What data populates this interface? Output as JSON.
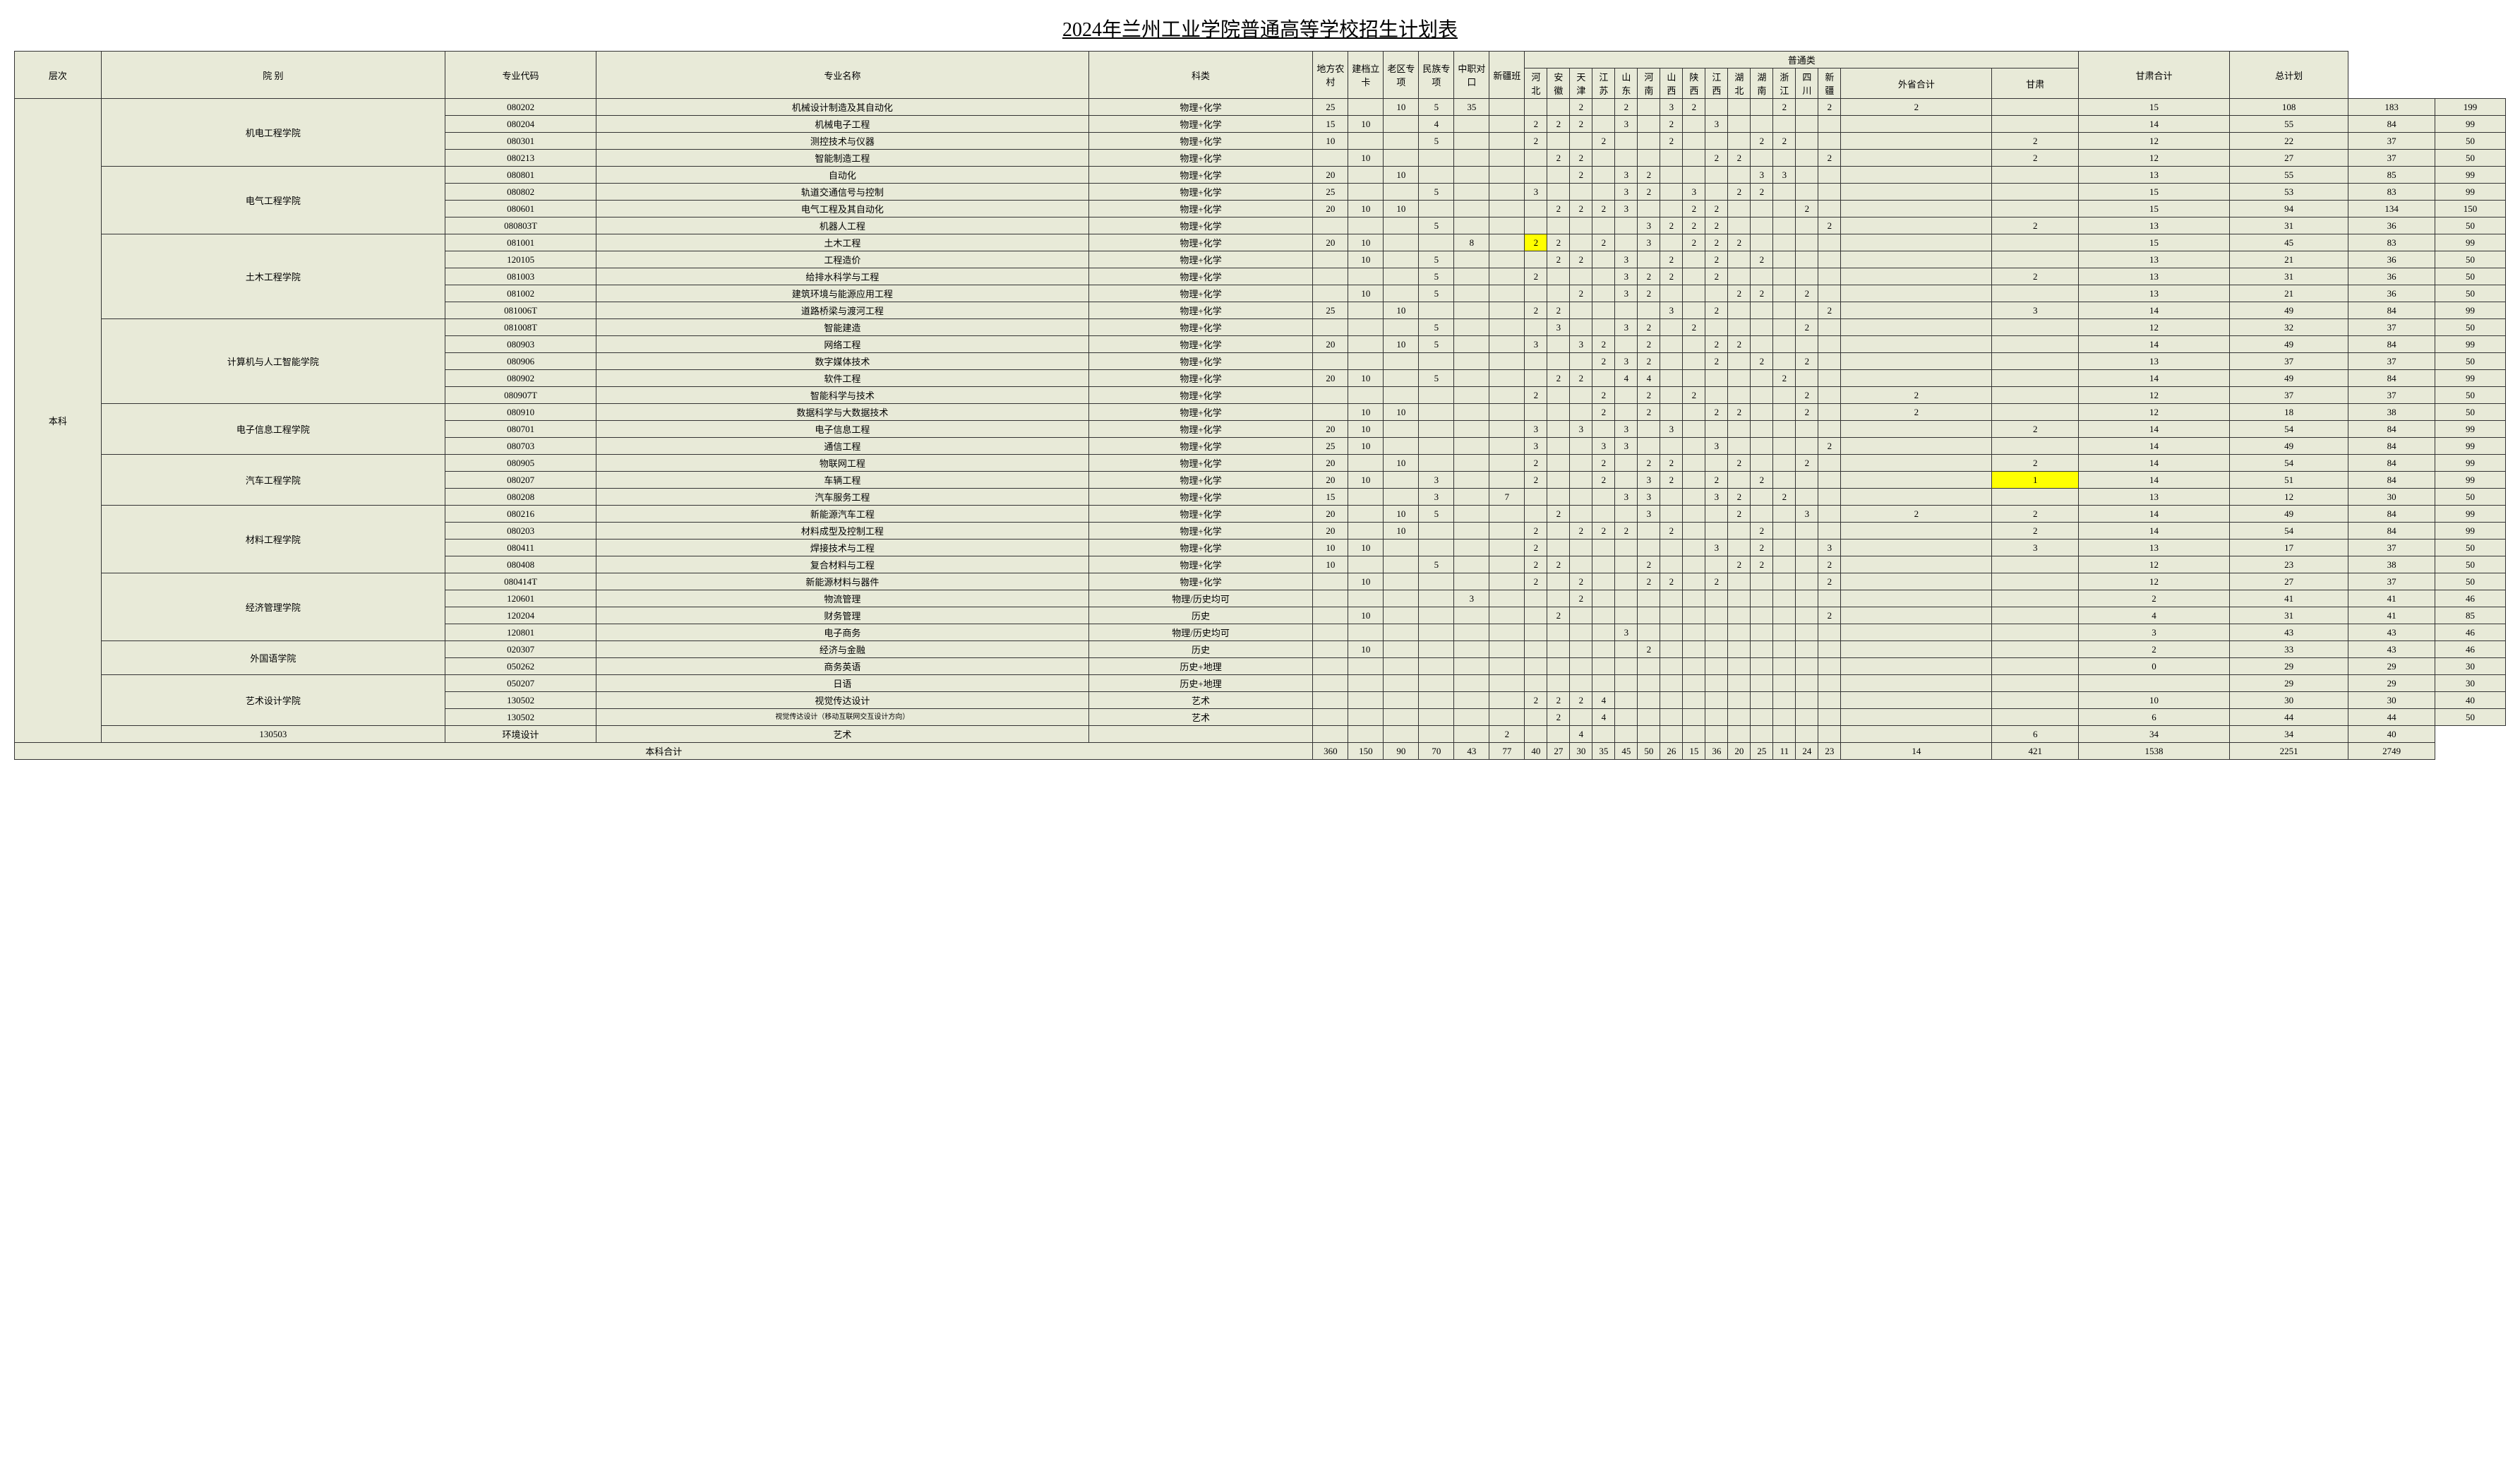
{
  "title": "2024年兰州工业学院普通高等学校招生计划表",
  "headers": {
    "level": "层次",
    "dept": "院 别",
    "code": "专业代码",
    "major": "专业名称",
    "category": "科类",
    "local": "地方农村",
    "jiandang": "建档立卡",
    "laoqu": "老区专项",
    "minzu": "民族专项",
    "zhongzhi": "中职对口",
    "xinjiang_class": "新疆班",
    "general": "普通类",
    "provinces": [
      "河北",
      "安徽",
      "天津",
      "江苏",
      "山东",
      "河南",
      "山西",
      "陕西",
      "江西",
      "湖北",
      "湖南",
      "浙江",
      "四川",
      "新疆"
    ],
    "outside_total": "外省合计",
    "gansu": "甘肃",
    "gansu_total": "甘肃合计",
    "grand_total": "总计划"
  },
  "level_label": "本科",
  "departments": [
    {
      "name": "机电工程学院",
      "span": 4
    },
    {
      "name": "电气工程学院",
      "span": 4
    },
    {
      "name": "土木工程学院",
      "span": 5
    },
    {
      "name": "计算机与人工智能学院",
      "span": 5
    },
    {
      "name": "电子信息工程学院",
      "span": 3
    },
    {
      "name": "汽车工程学院",
      "span": 3
    },
    {
      "name": "材料工程学院",
      "span": 4
    },
    {
      "name": "经济管理学院",
      "span": 4
    },
    {
      "name": "外国语学院",
      "span": 2
    },
    {
      "name": "艺术设计学院",
      "span": 3
    }
  ],
  "rows": [
    {
      "code": "080202",
      "major": "机械设计制造及其自动化",
      "cat": "物理+化学",
      "cells": [
        "25",
        "",
        "10",
        "5",
        "35",
        "",
        "",
        "",
        "2",
        "",
        "2",
        "",
        "3",
        "2",
        "",
        "",
        "",
        "2",
        "",
        "2",
        "2",
        "",
        "15",
        "108",
        "183",
        "199"
      ]
    },
    {
      "code": "080204",
      "major": "机械电子工程",
      "cat": "物理+化学",
      "cells": [
        "15",
        "10",
        "",
        "4",
        "",
        "",
        "2",
        "2",
        "2",
        "",
        "3",
        "",
        "2",
        "",
        "3",
        "",
        "",
        "",
        "",
        "",
        "",
        "",
        "14",
        "55",
        "84",
        "99"
      ]
    },
    {
      "code": "080301",
      "major": "测控技术与仪器",
      "cat": "物理+化学",
      "cells": [
        "10",
        "",
        "",
        "5",
        "",
        "",
        "2",
        "",
        "",
        "2",
        "",
        "",
        "2",
        "",
        "",
        "",
        "2",
        "2",
        "",
        "",
        "",
        "2",
        "12",
        "22",
        "37",
        "50"
      ]
    },
    {
      "code": "080213",
      "major": "智能制造工程",
      "cat": "物理+化学",
      "cells": [
        "",
        "10",
        "",
        "",
        "",
        "",
        "",
        "2",
        "2",
        "",
        "",
        "",
        "",
        "",
        "2",
        "2",
        "",
        "",
        "",
        "2",
        "",
        "2",
        "12",
        "27",
        "37",
        "50"
      ]
    },
    {
      "code": "080801",
      "major": "自动化",
      "cat": "物理+化学",
      "cells": [
        "20",
        "",
        "10",
        "",
        "",
        "",
        "",
        "",
        "2",
        "",
        "3",
        "2",
        "",
        "",
        "",
        "",
        "3",
        "3",
        "",
        "",
        "",
        "",
        "13",
        "55",
        "85",
        "99"
      ]
    },
    {
      "code": "080802",
      "major": "轨道交通信号与控制",
      "cat": "物理+化学",
      "cells": [
        "25",
        "",
        "",
        "5",
        "",
        "",
        "3",
        "",
        "",
        "",
        "3",
        "2",
        "",
        "3",
        "",
        "2",
        "2",
        "",
        "",
        "",
        "",
        "",
        "15",
        "53",
        "83",
        "99"
      ]
    },
    {
      "code": "080601",
      "major": "电气工程及其自动化",
      "cat": "物理+化学",
      "cells": [
        "20",
        "10",
        "10",
        "",
        "",
        "",
        "",
        "2",
        "2",
        "2",
        "3",
        "",
        "",
        "2",
        "2",
        "",
        "",
        "",
        "2",
        "",
        "",
        "",
        "15",
        "94",
        "134",
        "150"
      ]
    },
    {
      "code": "080803T",
      "major": "机器人工程",
      "cat": "物理+化学",
      "cells": [
        "",
        "",
        "",
        "5",
        "",
        "",
        "",
        "",
        "",
        "",
        "",
        "3",
        "2",
        "2",
        "2",
        "",
        "",
        "",
        "",
        "2",
        "",
        "2",
        "13",
        "31",
        "36",
        "50"
      ]
    },
    {
      "code": "081001",
      "major": "土木工程",
      "cat": "物理+化学",
      "cells": [
        "20",
        "10",
        "",
        "",
        "8",
        "",
        "2",
        "2",
        "",
        "2",
        "",
        "3",
        "",
        "2",
        "2",
        "2",
        "",
        "",
        "",
        "",
        "",
        "",
        "15",
        "45",
        "83",
        "99"
      ],
      "hl": [
        6
      ]
    },
    {
      "code": "120105",
      "major": "工程造价",
      "cat": "物理+化学",
      "cells": [
        "",
        "10",
        "",
        "5",
        "",
        "",
        "",
        "2",
        "2",
        "",
        "3",
        "",
        "2",
        "",
        "2",
        "",
        "2",
        "",
        "",
        "",
        "",
        "",
        "13",
        "21",
        "36",
        "50"
      ]
    },
    {
      "code": "081003",
      "major": "给排水科学与工程",
      "cat": "物理+化学",
      "cells": [
        "",
        "",
        "",
        "5",
        "",
        "",
        "2",
        "",
        "",
        "",
        "3",
        "2",
        "2",
        "",
        "2",
        "",
        "",
        "",
        "",
        "",
        "",
        "2",
        "13",
        "31",
        "36",
        "50"
      ]
    },
    {
      "code": "081002",
      "major": "建筑环境与能源应用工程",
      "cat": "物理+化学",
      "cells": [
        "",
        "10",
        "",
        "5",
        "",
        "",
        "",
        "",
        "2",
        "",
        "3",
        "2",
        "",
        "",
        "",
        "2",
        "2",
        "",
        "2",
        "",
        "",
        "",
        "13",
        "21",
        "36",
        "50"
      ]
    },
    {
      "code": "081006T",
      "major": "道路桥梁与渡河工程",
      "cat": "物理+化学",
      "cells": [
        "25",
        "",
        "10",
        "",
        "",
        "",
        "2",
        "2",
        "",
        "",
        "",
        "",
        "3",
        "",
        "2",
        "",
        "",
        "",
        "",
        "2",
        "",
        "3",
        "14",
        "49",
        "84",
        "99"
      ]
    },
    {
      "code": "081008T",
      "major": "智能建造",
      "cat": "物理+化学",
      "cells": [
        "",
        "",
        "",
        "5",
        "",
        "",
        "",
        "3",
        "",
        "",
        "3",
        "2",
        "",
        "2",
        "",
        "",
        "",
        "",
        "2",
        "",
        "",
        "",
        "12",
        "32",
        "37",
        "50"
      ]
    },
    {
      "code": "080903",
      "major": "网络工程",
      "cat": "物理+化学",
      "cells": [
        "20",
        "",
        "10",
        "5",
        "",
        "",
        "3",
        "",
        "3",
        "2",
        "",
        "2",
        "",
        "",
        "2",
        "2",
        "",
        "",
        "",
        "",
        "",
        "",
        "14",
        "49",
        "84",
        "99"
      ]
    },
    {
      "code": "080906",
      "major": "数字媒体技术",
      "cat": "物理+化学",
      "cells": [
        "",
        "",
        "",
        "",
        "",
        "",
        "",
        "",
        "",
        "2",
        "3",
        "2",
        "",
        "",
        "2",
        "",
        "2",
        "",
        "2",
        "",
        "",
        "",
        "13",
        "37",
        "37",
        "50"
      ]
    },
    {
      "code": "080902",
      "major": "软件工程",
      "cat": "物理+化学",
      "cells": [
        "20",
        "10",
        "",
        "5",
        "",
        "",
        "",
        "2",
        "2",
        "",
        "4",
        "4",
        "",
        "",
        "",
        "",
        "",
        "2",
        "",
        "",
        "",
        "",
        "14",
        "49",
        "84",
        "99"
      ]
    },
    {
      "code": "080907T",
      "major": "智能科学与技术",
      "cat": "物理+化学",
      "cells": [
        "",
        "",
        "",
        "",
        "",
        "",
        "2",
        "",
        "",
        "2",
        "",
        "2",
        "",
        "2",
        "",
        "",
        "",
        "",
        "2",
        "",
        "2",
        "",
        "12",
        "37",
        "37",
        "50"
      ]
    },
    {
      "code": "080910",
      "major": "数据科学与大数据技术",
      "cat": "物理+化学",
      "cells": [
        "",
        "10",
        "10",
        "",
        "",
        "",
        "",
        "",
        "",
        "2",
        "",
        "2",
        "",
        "",
        "2",
        "2",
        "",
        "",
        "2",
        "",
        "2",
        "",
        "12",
        "18",
        "38",
        "50"
      ]
    },
    {
      "code": "080701",
      "major": "电子信息工程",
      "cat": "物理+化学",
      "cells": [
        "20",
        "10",
        "",
        "",
        "",
        "",
        "3",
        "",
        "3",
        "",
        "3",
        "",
        "3",
        "",
        "",
        "",
        "",
        "",
        "",
        "",
        "",
        "2",
        "14",
        "54",
        "84",
        "99"
      ]
    },
    {
      "code": "080703",
      "major": "通信工程",
      "cat": "物理+化学",
      "cells": [
        "25",
        "10",
        "",
        "",
        "",
        "",
        "3",
        "",
        "",
        "3",
        "3",
        "",
        "",
        "",
        "3",
        "",
        "",
        "",
        "",
        "2",
        "",
        "",
        "14",
        "49",
        "84",
        "99"
      ]
    },
    {
      "code": "080905",
      "major": "物联网工程",
      "cat": "物理+化学",
      "cells": [
        "20",
        "",
        "10",
        "",
        "",
        "",
        "2",
        "",
        "",
        "2",
        "",
        "2",
        "2",
        "",
        "",
        "2",
        "",
        "",
        "2",
        "",
        "",
        "2",
        "14",
        "54",
        "84",
        "99"
      ]
    },
    {
      "code": "080207",
      "major": "车辆工程",
      "cat": "物理+化学",
      "cells": [
        "20",
        "10",
        "",
        "3",
        "",
        "",
        "2",
        "",
        "",
        "2",
        "",
        "3",
        "2",
        "",
        "2",
        "",
        "2",
        "",
        "",
        "",
        "",
        "1",
        "14",
        "51",
        "84",
        "99"
      ],
      "hl": [
        21
      ]
    },
    {
      "code": "080208",
      "major": "汽车服务工程",
      "cat": "物理+化学",
      "cells": [
        "15",
        "",
        "",
        "3",
        "",
        "7",
        "",
        "",
        "",
        "",
        "3",
        "3",
        "",
        "",
        "3",
        "2",
        "",
        "2",
        "",
        "",
        "",
        "",
        "13",
        "12",
        "30",
        "50"
      ]
    },
    {
      "code": "080216",
      "major": "新能源汽车工程",
      "cat": "物理+化学",
      "cells": [
        "20",
        "",
        "10",
        "5",
        "",
        "",
        "",
        "2",
        "",
        "",
        "",
        "3",
        "",
        "",
        "",
        "2",
        "",
        "",
        "3",
        "",
        "2",
        "2",
        "14",
        "49",
        "84",
        "99"
      ]
    },
    {
      "code": "080203",
      "major": "材料成型及控制工程",
      "cat": "物理+化学",
      "cells": [
        "20",
        "",
        "10",
        "",
        "",
        "",
        "2",
        "",
        "2",
        "2",
        "2",
        "",
        "2",
        "",
        "",
        "",
        "2",
        "",
        "",
        "",
        "",
        "2",
        "14",
        "54",
        "84",
        "99"
      ]
    },
    {
      "code": "080411",
      "major": "焊接技术与工程",
      "cat": "物理+化学",
      "cells": [
        "10",
        "10",
        "",
        "",
        "",
        "",
        "2",
        "",
        "",
        "",
        "",
        "",
        "",
        "",
        "3",
        "",
        "2",
        "",
        "",
        "3",
        "",
        "3",
        "13",
        "17",
        "37",
        "50"
      ]
    },
    {
      "code": "080408",
      "major": "复合材料与工程",
      "cat": "物理+化学",
      "cells": [
        "10",
        "",
        "",
        "5",
        "",
        "",
        "2",
        "2",
        "",
        "",
        "",
        "2",
        "",
        "",
        "",
        "2",
        "2",
        "",
        "",
        "2",
        "",
        "",
        "12",
        "23",
        "38",
        "50"
      ]
    },
    {
      "code": "080414T",
      "major": "新能源材料与器件",
      "cat": "物理+化学",
      "cells": [
        "",
        "10",
        "",
        "",
        "",
        "",
        "2",
        "",
        "2",
        "",
        "",
        "2",
        "2",
        "",
        "2",
        "",
        "",
        "",
        "",
        "2",
        "",
        "",
        "12",
        "27",
        "37",
        "50"
      ]
    },
    {
      "code": "120601",
      "major": "物流管理",
      "cat": "物理/历史均可",
      "cells": [
        "",
        "",
        "",
        "",
        "3",
        "",
        "",
        "",
        "2",
        "",
        "",
        "",
        "",
        "",
        "",
        "",
        "",
        "",
        "",
        "",
        "",
        "",
        "2",
        "41",
        "41",
        "46"
      ]
    },
    {
      "code": "120204",
      "major": "财务管理",
      "cat": "历史",
      "cells": [
        "",
        "10",
        "",
        "",
        "",
        "",
        "",
        "2",
        "",
        "",
        "",
        "",
        "",
        "",
        "",
        "",
        "",
        "",
        "",
        "2",
        "",
        "",
        "4",
        "31",
        "41",
        "85"
      ]
    },
    {
      "code": "120801",
      "major": "电子商务",
      "cat": "物理/历史均可",
      "cells": [
        "",
        "",
        "",
        "",
        "",
        "",
        "",
        "",
        "",
        "",
        "3",
        "",
        "",
        "",
        "",
        "",
        "",
        "",
        "",
        "",
        "",
        "",
        "3",
        "43",
        "43",
        "46"
      ]
    },
    {
      "code": "020307",
      "major": "经济与金融",
      "cat": "历史",
      "cells": [
        "",
        "10",
        "",
        "",
        "",
        "",
        "",
        "",
        "",
        "",
        "",
        "2",
        "",
        "",
        "",
        "",
        "",
        "",
        "",
        "",
        "",
        "",
        "2",
        "33",
        "43",
        "46"
      ]
    },
    {
      "code": "050262",
      "major": "商务英语",
      "cat": "历史+地理",
      "cells": [
        "",
        "",
        "",
        "",
        "",
        "",
        "",
        "",
        "",
        "",
        "",
        "",
        "",
        "",
        "",
        "",
        "",
        "",
        "",
        "",
        "",
        "",
        "0",
        "29",
        "29",
        "30"
      ]
    },
    {
      "code": "050207",
      "major": "日语",
      "cat": "历史+地理",
      "cells": [
        "",
        "",
        "",
        "",
        "",
        "",
        "",
        "",
        "",
        "",
        "",
        "",
        "",
        "",
        "",
        "",
        "",
        "",
        "",
        "",
        "",
        "",
        "",
        "29",
        "29",
        "30"
      ]
    },
    {
      "code": "130502",
      "major": "视觉传达设计",
      "cat": "艺术",
      "cells": [
        "",
        "",
        "",
        "",
        "",
        "",
        "2",
        "2",
        "2",
        "4",
        "",
        "",
        "",
        "",
        "",
        "",
        "",
        "",
        "",
        "",
        "",
        "",
        "10",
        "30",
        "30",
        "40"
      ]
    },
    {
      "code": "130502",
      "major": "视觉传达设计（移动互联网交互设计方向）",
      "cat": "艺术",
      "cells": [
        "",
        "",
        "",
        "",
        "",
        "",
        "",
        "2",
        "",
        "4",
        "",
        "",
        "",
        "",
        "",
        "",
        "",
        "",
        "",
        "",
        "",
        "",
        "6",
        "44",
        "44",
        "50"
      ],
      "small": true
    },
    {
      "code": "130503",
      "major": "环境设计",
      "cat": "艺术",
      "cells": [
        "",
        "",
        "",
        "",
        "",
        "",
        "2",
        "",
        "",
        "4",
        "",
        "",
        "",
        "",
        "",
        "",
        "",
        "",
        "",
        "",
        "",
        "",
        "6",
        "34",
        "34",
        "40"
      ]
    }
  ],
  "total": {
    "label": "本科合计",
    "cells": [
      "360",
      "150",
      "90",
      "70",
      "43",
      "77",
      "40",
      "27",
      "30",
      "35",
      "45",
      "50",
      "26",
      "15",
      "36",
      "20",
      "25",
      "11",
      "24",
      "23",
      "14",
      "421",
      "1538",
      "2251",
      "2749"
    ]
  },
  "colors": {
    "bg": "#e8ead8",
    "highlight": "#ffff00",
    "border": "#333333"
  }
}
